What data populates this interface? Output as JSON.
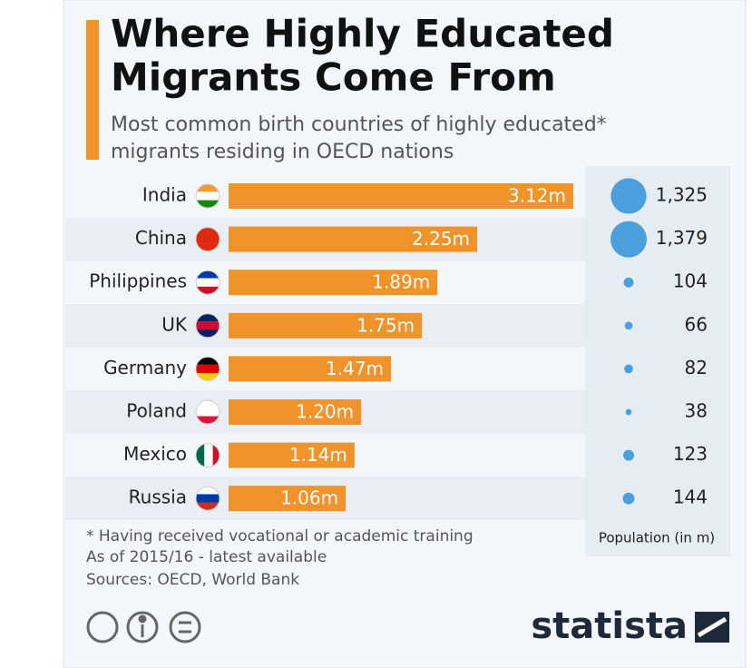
{
  "chart_data": {
    "type": "bar",
    "title_lines": [
      "Where Highly Educated",
      "Migrants Come From"
    ],
    "subtitle_lines": [
      "Most common birth countries of highly educated*",
      "migrants residing in OECD nations"
    ],
    "categories": [
      "India",
      "China",
      "Philippines",
      "UK",
      "Germany",
      "Poland",
      "Mexico",
      "Russia"
    ],
    "values": [
      3.12,
      2.25,
      1.89,
      1.75,
      1.47,
      1.2,
      1.14,
      1.06
    ],
    "value_labels": [
      "3.12m",
      "2.25m",
      "1.89m",
      "1.75m",
      "1.47m",
      "1.20m",
      "1.14m",
      "1.06m"
    ],
    "color": "#f0932b",
    "population": {
      "label": "Population (in m)",
      "color": "#4a9fdc",
      "values": [
        1325,
        1379,
        104,
        66,
        82,
        38,
        123,
        144
      ],
      "value_labels": [
        "1,325",
        "1,379",
        "104",
        "66",
        "82",
        "38",
        "123",
        "144"
      ]
    },
    "notes": [
      "* Having received vocational or academic training",
      "As of 2015/16 - latest available",
      "Sources: OECD, World Bank"
    ],
    "logo": "statista"
  }
}
